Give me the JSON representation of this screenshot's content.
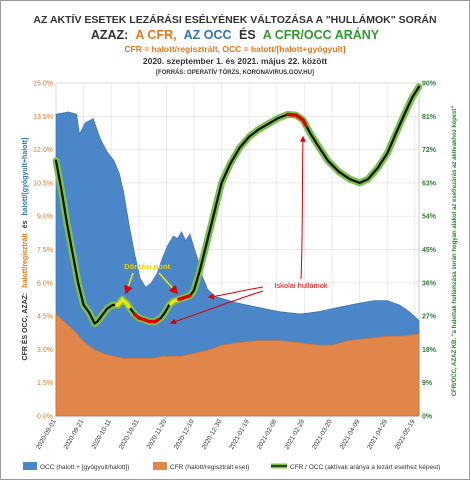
{
  "header": {
    "title_line1": "AZ AKTÍV  ESETEK  LEZÁRÁSI ESÉLYÉNEK VÁLTOZÁSA  A \"HULLÁMOK\"  SORÁN",
    "title_line2": {
      "part1": "AZAZ:",
      "part2": "A CFR,",
      "part3": "AZ OCC",
      "part4": "ÉS",
      "part5": "A CFR/OCC  ARÁNY",
      "part1_color": "#333333",
      "part2_color": "#e8761a",
      "part3_color": "#2f74c0",
      "part5_color": "#2f9a2f"
    },
    "subtitle": "CFR = halott/regisztrált, OCC = halott/[halott+gyógyult]",
    "date_range": "2020. szeptember 1.  és 2021. május 22. között",
    "source": "[FORRÁS: OPERATÍV TÖRZS, KORONAVIRUS.GOV.HU]"
  },
  "annotations": {
    "dontesi_pont": "Döntési pont",
    "iskolai_hullamok": "Iskolai hullámok"
  },
  "left_axis_title": {
    "part1": "CFR ÉS OCC, AZAZ:",
    "part2": "halott/regisztrált",
    "part3": "és",
    "part4": "halott/[gyógyult+halott]"
  },
  "right_axis_title": "CFR/OCC, AZAZ KB. \"a halottak hullámzása során hogyan alakul az esetlezárás az aktívakhoz képest\"",
  "legend": {
    "occ": "OCC (halott + [gyógyult/halott])",
    "cfr": "CFR (halott/regisztrált eset)",
    "ratio": "CFR / OCC (aktívak aránya a lezárt esethez képest)"
  },
  "colors": {
    "occ": "#4a86c8",
    "cfr": "#e0864a",
    "ratio_line": "#101010",
    "ratio_halo": "#7cc04a",
    "highlight_red": "#e00000",
    "highlight_yellow": "#f2e600",
    "arrow_red": "#e00000",
    "plot_bg": "#ffffff",
    "grid": "#e2e2e2",
    "left_tick": "#e8761a",
    "right_tick": "#2e7d32"
  },
  "chart_data": {
    "type": "area",
    "title": "AZ AKTÍV  ESETEK  LEZÁRÁSI ESÉLYÉNEK VÁLTOZÁSA  A \"HULLÁMOK\"  SORÁN",
    "x_axis": {
      "start": "2020-09-01",
      "end": "2021-05-22",
      "tick_labels": [
        "2020-09-01",
        "2020-09-21",
        "2020-10-11",
        "2020-10-31",
        "2020-11-20",
        "2020-12-10",
        "2020-12-30",
        "2021-01-19",
        "2021-02-08",
        "2021-02-28",
        "2021-03-20",
        "2021-04-09",
        "2021-04-29",
        "2021-05-19"
      ]
    },
    "y_left": {
      "min": 0,
      "max": 15,
      "tick_labels": [
        "0.0%",
        "1.5%",
        "3.0%",
        "4.5%",
        "6.0%",
        "7.5%",
        "9.0%",
        "10.5%",
        "12.0%",
        "13.5%",
        "15.0%"
      ],
      "tick_values": [
        0,
        1.5,
        3,
        4.5,
        6,
        7.5,
        9,
        10.5,
        12,
        13.5,
        15
      ]
    },
    "y_right": {
      "min": 0,
      "max": 90,
      "tick_labels": [
        "0%",
        "9%",
        "18%",
        "27%",
        "36%",
        "45%",
        "54%",
        "63%",
        "72%",
        "81%",
        "90%"
      ],
      "tick_values": [
        0,
        9,
        18,
        27,
        36,
        45,
        54,
        63,
        72,
        81,
        90
      ]
    },
    "grid": true,
    "legend_position": "bottom",
    "series": [
      {
        "name": "OCC (halott + [gyógyult/halott])",
        "kind": "area",
        "axis": "left",
        "points": [
          [
            "2020-09-01",
            13.6
          ],
          [
            "2020-09-10",
            13.7
          ],
          [
            "2020-09-16",
            13.6
          ],
          [
            "2020-09-18",
            12.7
          ],
          [
            "2020-09-22",
            13.2
          ],
          [
            "2020-09-28",
            13.4
          ],
          [
            "2020-10-03",
            12.5
          ],
          [
            "2020-10-08",
            11.9
          ],
          [
            "2020-10-13",
            11.5
          ],
          [
            "2020-10-17",
            10.9
          ],
          [
            "2020-10-20",
            10.1
          ],
          [
            "2020-10-24",
            8.6
          ],
          [
            "2020-10-28",
            7.3
          ],
          [
            "2020-11-01",
            6.2
          ],
          [
            "2020-11-05",
            5.8
          ],
          [
            "2020-11-09",
            6.0
          ],
          [
            "2020-11-13",
            6.4
          ],
          [
            "2020-11-17",
            7.1
          ],
          [
            "2020-11-21",
            7.7
          ],
          [
            "2020-11-25",
            8.1
          ],
          [
            "2020-11-28",
            8.0
          ],
          [
            "2020-12-01",
            8.3
          ],
          [
            "2020-12-04",
            7.9
          ],
          [
            "2020-12-07",
            8.2
          ],
          [
            "2020-12-10",
            7.6
          ],
          [
            "2020-12-13",
            7.0
          ],
          [
            "2020-12-16",
            6.3
          ],
          [
            "2020-12-20",
            5.7
          ],
          [
            "2020-12-25",
            5.4
          ],
          [
            "2020-12-30",
            5.3
          ],
          [
            "2021-01-10",
            5.1
          ],
          [
            "2021-01-25",
            4.9
          ],
          [
            "2021-02-10",
            4.7
          ],
          [
            "2021-02-25",
            4.6
          ],
          [
            "2021-03-10",
            4.7
          ],
          [
            "2021-03-25",
            4.9
          ],
          [
            "2021-04-10",
            5.1
          ],
          [
            "2021-04-20",
            5.2
          ],
          [
            "2021-04-29",
            5.2
          ],
          [
            "2021-05-08",
            5.0
          ],
          [
            "2021-05-15",
            4.7
          ],
          [
            "2021-05-22",
            4.3
          ]
        ]
      },
      {
        "name": "CFR (halott/regisztrált eset)",
        "kind": "area",
        "axis": "left",
        "points": [
          [
            "2020-09-01",
            4.6
          ],
          [
            "2020-09-08",
            4.2
          ],
          [
            "2020-09-15",
            3.8
          ],
          [
            "2020-09-22",
            3.3
          ],
          [
            "2020-09-29",
            3.0
          ],
          [
            "2020-10-06",
            2.8
          ],
          [
            "2020-10-13",
            2.7
          ],
          [
            "2020-10-20",
            2.6
          ],
          [
            "2020-10-27",
            2.6
          ],
          [
            "2020-11-03",
            2.6
          ],
          [
            "2020-11-10",
            2.6
          ],
          [
            "2020-11-17",
            2.7
          ],
          [
            "2020-11-24",
            2.7
          ],
          [
            "2020-12-01",
            2.7
          ],
          [
            "2020-12-08",
            2.8
          ],
          [
            "2020-12-15",
            2.9
          ],
          [
            "2020-12-22",
            3.0
          ],
          [
            "2020-12-30",
            3.2
          ],
          [
            "2021-01-10",
            3.3
          ],
          [
            "2021-01-25",
            3.4
          ],
          [
            "2021-02-10",
            3.4
          ],
          [
            "2021-02-25",
            3.3
          ],
          [
            "2021-03-10",
            3.2
          ],
          [
            "2021-03-20",
            3.2
          ],
          [
            "2021-04-01",
            3.4
          ],
          [
            "2021-04-15",
            3.5
          ],
          [
            "2021-04-29",
            3.6
          ],
          [
            "2021-05-10",
            3.6
          ],
          [
            "2021-05-22",
            3.7
          ]
        ]
      },
      {
        "name": "CFR / OCC (aktívak aránya a lezárt esethez képest)",
        "kind": "line",
        "axis": "right",
        "points": [
          [
            "2020-09-01",
            69
          ],
          [
            "2020-09-05",
            61
          ],
          [
            "2020-09-09",
            52
          ],
          [
            "2020-09-13",
            44
          ],
          [
            "2020-09-17",
            36
          ],
          [
            "2020-09-21",
            30
          ],
          [
            "2020-09-25",
            28
          ],
          [
            "2020-09-29",
            25
          ],
          [
            "2020-10-01",
            25.5
          ],
          [
            "2020-10-04",
            27
          ],
          [
            "2020-10-08",
            29
          ],
          [
            "2020-10-12",
            30
          ],
          [
            "2020-10-16",
            30
          ],
          [
            "2020-10-19",
            31.5
          ],
          [
            "2020-10-22",
            30.5
          ],
          [
            "2020-10-25",
            29
          ],
          [
            "2020-10-28",
            27.5
          ],
          [
            "2020-10-31",
            26.5
          ],
          [
            "2020-11-04",
            26
          ],
          [
            "2020-11-08",
            25.5
          ],
          [
            "2020-11-12",
            25.5
          ],
          [
            "2020-11-16",
            26.5
          ],
          [
            "2020-11-19",
            28
          ],
          [
            "2020-11-22",
            30
          ],
          [
            "2020-11-25",
            31
          ],
          [
            "2020-11-29",
            31.5
          ],
          [
            "2020-12-03",
            32
          ],
          [
            "2020-12-07",
            32.5
          ],
          [
            "2020-12-10",
            34
          ],
          [
            "2020-12-14",
            39
          ],
          [
            "2020-12-18",
            45
          ],
          [
            "2020-12-22",
            51
          ],
          [
            "2020-12-26",
            57
          ],
          [
            "2020-12-30",
            63
          ],
          [
            "2021-01-05",
            68
          ],
          [
            "2021-01-12",
            72.5
          ],
          [
            "2021-01-19",
            75.5
          ],
          [
            "2021-01-26",
            77.5
          ],
          [
            "2021-02-02",
            79
          ],
          [
            "2021-02-09",
            80.5
          ],
          [
            "2021-02-16",
            81.5
          ],
          [
            "2021-02-22",
            81.3
          ],
          [
            "2021-02-27",
            80
          ],
          [
            "2021-03-04",
            76.5
          ],
          [
            "2021-03-10",
            73
          ],
          [
            "2021-03-17",
            69
          ],
          [
            "2021-03-25",
            66
          ],
          [
            "2021-04-02",
            64
          ],
          [
            "2021-04-09",
            63
          ],
          [
            "2021-04-15",
            64
          ],
          [
            "2021-04-22",
            67
          ],
          [
            "2021-04-29",
            71
          ],
          [
            "2021-05-06",
            77
          ],
          [
            "2021-05-12",
            82
          ],
          [
            "2021-05-17",
            86
          ],
          [
            "2021-05-22",
            89
          ]
        ]
      }
    ],
    "highlights": [
      {
        "color": "yellow",
        "from": "2020-10-15",
        "to": "2020-10-24"
      },
      {
        "color": "red",
        "from": "2020-10-28",
        "to": "2020-11-14"
      },
      {
        "color": "yellow",
        "from": "2020-11-23",
        "to": "2020-11-29"
      },
      {
        "color": "red",
        "from": "2020-11-29",
        "to": "2020-12-07"
      },
      {
        "color": "red",
        "from": "2021-02-16",
        "to": "2021-03-01"
      }
    ]
  }
}
